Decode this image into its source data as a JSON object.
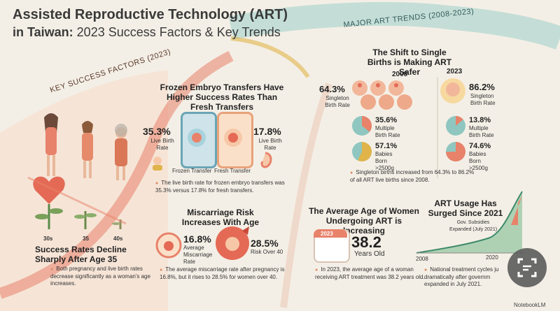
{
  "title": {
    "line1": "Assisted Reproductive Technology (ART)",
    "line2_bold": "in Taiwan:",
    "line2_rest": " 2023 Success Factors & Key Trends"
  },
  "banners": {
    "left": "KEY SUCCESS FACTORS (2023)",
    "right": "MAJOR ART TRENDS (2008-2023)"
  },
  "age_section": {
    "labels": [
      "30s",
      "35",
      "40s"
    ],
    "heading": "Success Rates Decline Sharply After Age 35",
    "bullet": "Both pregnancy and live birth rates decrease significantly as a woman's age increases."
  },
  "frozen_section": {
    "heading": "Frozen Embryo Transfers Have Higher Success Rates Than Fresh Transfers",
    "frozen": {
      "value": "35.3%",
      "label": "Live Birth Rate",
      "name": "Frozen Transfer"
    },
    "fresh": {
      "value": "17.8%",
      "label": "Live Birth Rate",
      "name": "Fresh Transfer"
    },
    "bullet": "The live birth rate for frozen embryo transfers was 35.3% versus 17.8% for fresh transfers."
  },
  "miscarriage_section": {
    "heading": "Miscarriage Risk Increases With Age",
    "average": {
      "value": "16.8%",
      "label": "Average Miscarriage Rate"
    },
    "over40": {
      "value": "28.5%",
      "label": "Risk Over 40"
    },
    "bullet": "The average miscarriage rate after pregnancy is 16.8%, but it rises to 28.5% for women over 40."
  },
  "single_births": {
    "heading": "The Shift to Single Births is Making ART Safer",
    "year_a": "2008",
    "year_b": "2023",
    "singleton_a": {
      "value": "64.3%",
      "label": "Singleton Birth Rate"
    },
    "singleton_b": {
      "value": "86.2%",
      "label": "Singleton Birth Rate"
    },
    "multiple_a": {
      "value": "35.6%",
      "label": "Multiple Birth Rate",
      "fraction": 0.356
    },
    "multiple_b": {
      "value": "13.8%",
      "label": "Multiple Birth Rate",
      "fraction": 0.138
    },
    "babies_a": {
      "value": "57.1%",
      "label": "Babies Born >2500g",
      "fraction": 0.571
    },
    "babies_b": {
      "value": "74.6%",
      "label": "Babies Born >2500g",
      "fraction": 0.746
    },
    "bullet": "Singleton births increased from 64.3% to 86.2% of all ART live births since 2008."
  },
  "average_age": {
    "heading": "The Average Age of Women Undergoing ART is Increasing",
    "calendar_year": "2023",
    "value": "38.2",
    "unit": "Years Old",
    "bullet": "In 2023, the average age of a woman receiving ART treatment was 38.2 years old."
  },
  "usage": {
    "heading": "ART Usage Has Surged Since 2021",
    "subsidy": "Gov. Subsidies Expanded (July 2021)",
    "x_start": "2008",
    "x_end": "2020",
    "bullet": "National treatment cycles ju dramatically after governm expanded in July 2021."
  },
  "watermark": "NotebookLM",
  "colors": {
    "coral": "#e8826a",
    "teal": "#5fa9a8",
    "mustard": "#e0b44a",
    "cream": "#f4efe6"
  }
}
